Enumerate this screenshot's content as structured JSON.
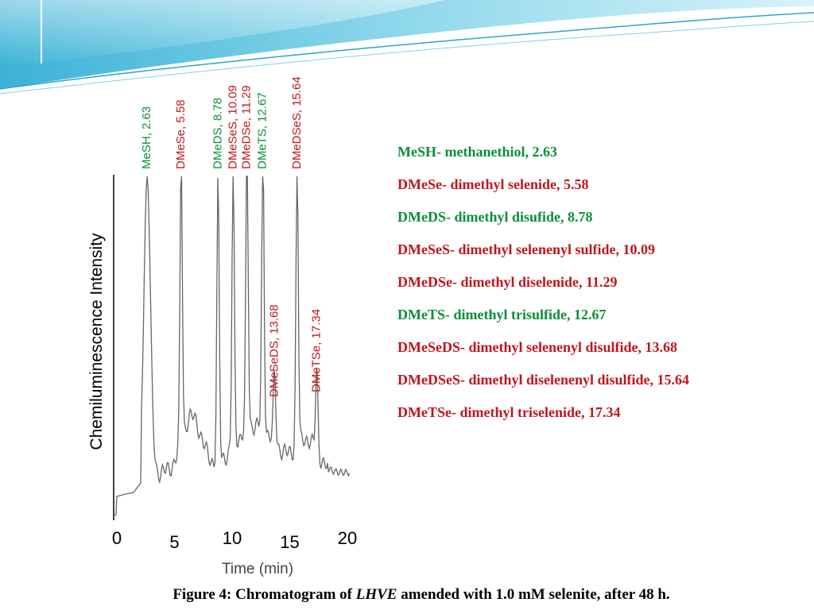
{
  "colors": {
    "green": "#0b8f3a",
    "red": "#c0161c",
    "trace": "#666666",
    "header_light": "#cfeef6",
    "header_mid": "#7fd0e6",
    "header_dark": "#2fa3c8"
  },
  "chart_data": {
    "type": "line",
    "xlabel": "Time (min)",
    "ylabel": "Chemiluminescence Intensity",
    "xlim": [
      0,
      20
    ],
    "x_ticks": [
      "0",
      "5",
      "10",
      "15",
      "20"
    ],
    "grid": false,
    "peaks": [
      {
        "label": "MeSH, 2.63",
        "x": 2.63,
        "color": "green"
      },
      {
        "label": "DMeSe, 5.58",
        "x": 5.58,
        "color": "red"
      },
      {
        "label": "DMeDS, 8.78",
        "x": 8.78,
        "color": "green"
      },
      {
        "label": "DMeSeS, 10.09",
        "x": 10.09,
        "color": "red"
      },
      {
        "label": "DMeDSe, 11.29",
        "x": 11.29,
        "color": "red"
      },
      {
        "label": "DMeTS, 12.67",
        "x": 12.67,
        "color": "green"
      },
      {
        "label": "DMeSeDS, 13.68",
        "x": 13.68,
        "color": "red"
      },
      {
        "label": "DMeDSeS, 15.64",
        "x": 15.64,
        "color": "red"
      },
      {
        "label": "DMeTSe, 17.34",
        "x": 17.34,
        "color": "red"
      }
    ]
  },
  "legend": [
    {
      "text": "MeSH- methanethiol, 2.63",
      "color": "green"
    },
    {
      "text": "DMeSe- dimethyl selenide, 5.58",
      "color": "red"
    },
    {
      "text": "DMeDS- dimethyl disufide, 8.78",
      "color": "green"
    },
    {
      "text": "DMeSeS- dimethyl selenenyl sulfide, 10.09",
      "color": "red"
    },
    {
      "text": "DMeDSe- dimethyl diselenide, 11.29",
      "color": "red"
    },
    {
      "text": "DMeTS- dimethyl trisulfide, 12.67",
      "color": "green"
    },
    {
      "text": "DMeSeDS- dimethyl selenenyl disulfide, 13.68",
      "color": "red"
    },
    {
      "text": "DMeDSeS- dimethyl diselenenyl disulfide, 15.64",
      "color": "red"
    },
    {
      "text": "DMeTSe- dimethyl triselenide, 17.34",
      "color": "red"
    }
  ],
  "caption": {
    "prefix": "Figure 4: Chromatogram of ",
    "italic": "LHVE",
    "suffix": "  amended with  1.0 mM  selenite, after 48 h."
  }
}
